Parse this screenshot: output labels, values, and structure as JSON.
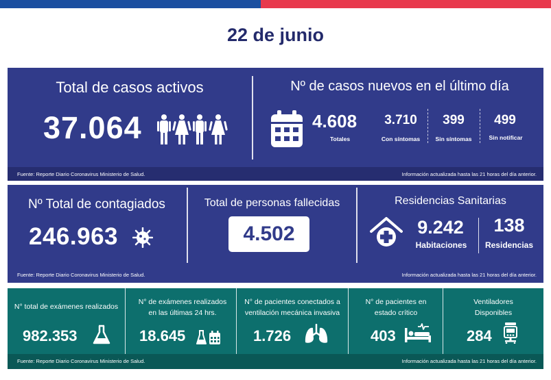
{
  "header": {
    "date": "22 de junio"
  },
  "activos": {
    "title": "Total de casos activos",
    "value": "37.064",
    "icon": "people-icon"
  },
  "nuevos": {
    "title": "Nº de casos nuevos en el último día",
    "icon": "calendar-icon",
    "totales_value": "4.608",
    "totales_label": "Totales",
    "con_sintomas_value": "3.710",
    "con_sintomas_label": "Con síntomas",
    "sin_sintomas_value": "399",
    "sin_sintomas_label": "Sin síntomas",
    "sin_notificar_value": "499",
    "sin_notificar_label": "Sin notificar"
  },
  "contagiados": {
    "title": "Nº Total de contagiados",
    "value": "246.963",
    "icon": "virus-icon"
  },
  "fallecidos": {
    "title": "Total de personas fallecidas",
    "value": "4.502"
  },
  "residencias": {
    "title": "Residencias Sanitarias",
    "icon": "house-medical-icon",
    "habitaciones_value": "9.242",
    "habitaciones_label": "Habitaciones",
    "residencias_value": "138",
    "residencias_label": "Residencias"
  },
  "examenes": {
    "title": "N° total de exámenes realizados",
    "value": "982.353",
    "icon": "flask-icon"
  },
  "examenes24": {
    "title_line1": "N° de exámenes realizados",
    "title_line2": "en las últimas 24 hrs.",
    "value": "18.645",
    "icon": "flask-calendar-icon"
  },
  "ventilacion": {
    "title_line1": "N° de pacientes conectados a",
    "title_line2": "ventilación mecánica invasiva",
    "value": "1.726",
    "icon": "lungs-icon"
  },
  "critico": {
    "title_line1": "N° de pacientes  en",
    "title_line2": "estado crítico",
    "value": "403",
    "icon": "hospital-bed-icon"
  },
  "ventiladores": {
    "title_line1": "Ventiladores",
    "title_line2": "Disponibles",
    "value": "284",
    "icon": "ventilator-icon"
  },
  "footer": {
    "source": "Fuente: Reporte Diario Coronavirus Ministerio de Salud.",
    "updated": "Información actualizada hasta las 21 horas  del día anterior."
  },
  "colors": {
    "brand_blue": "#313b8a",
    "brand_blue_dark": "#262d70",
    "teal": "#0d6f6d",
    "title_navy": "#232a6b",
    "flag_blue": "#1b4fa0",
    "flag_red": "#e8394d"
  }
}
